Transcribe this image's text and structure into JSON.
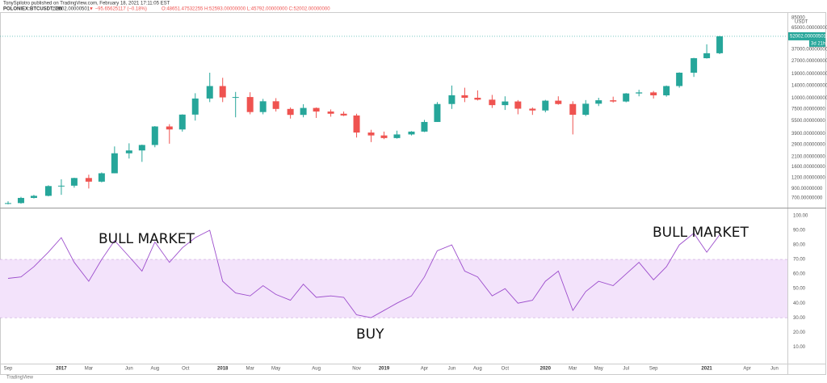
{
  "header": {
    "author_line": "TonySpilotro published on TradingView.com, February 18, 2021 17:11:05 EST",
    "symbol": "POLONIEX:BTCUSDT, 1W",
    "price": "52002.00000501",
    "change": "▼ −95.65625117 (−0.18%)",
    "ohlc": "O:48651.47532255 H:52593.00000000 L:45792.00000000 C:52002.00000000"
  },
  "footer": "TradingView",
  "chart_data": [
    {
      "type": "candlestick",
      "log_scale": true,
      "grid": false,
      "unit_label": "USDT",
      "up_color": "#26a69a",
      "down_color": "#ef5350",
      "last_price": {
        "value": 52002.00000501,
        "label": "52002.00000501"
      },
      "countdown": "3d 21h",
      "xlim": [
        2016.62,
        2021.5
      ],
      "x": [
        2016.67,
        2016.75,
        2016.83,
        2016.92,
        2017.0,
        2017.08,
        2017.17,
        2017.25,
        2017.33,
        2017.42,
        2017.5,
        2017.58,
        2017.67,
        2017.75,
        2017.83,
        2017.92,
        2018.0,
        2018.08,
        2018.17,
        2018.25,
        2018.33,
        2018.42,
        2018.5,
        2018.58,
        2018.67,
        2018.75,
        2018.83,
        2018.92,
        2019.0,
        2019.08,
        2019.17,
        2019.25,
        2019.33,
        2019.42,
        2019.5,
        2019.58,
        2019.67,
        2019.75,
        2019.83,
        2019.92,
        2020.0,
        2020.08,
        2020.17,
        2020.25,
        2020.33,
        2020.42,
        2020.5,
        2020.58,
        2020.67,
        2020.75,
        2020.83,
        2020.92,
        2021.0,
        2021.08
      ],
      "open": [
        600,
        610,
        700,
        740,
        960,
        970,
        1190,
        1080,
        1350,
        2300,
        2480,
        2870,
        4700,
        4340,
        6450,
        9900,
        13800,
        10200,
        10300,
        6900,
        9200,
        7500,
        6400,
        7700,
        7000,
        6600,
        6300,
        4000,
        3700,
        3450,
        3800,
        4100,
        5300,
        8550,
        10800,
        10100,
        9600,
        8300,
        9150,
        7550,
        7200,
        9350,
        8550,
        6420,
        8620,
        9450,
        9140,
        11330,
        11650,
        10780,
        13800,
        19700,
        28990,
        33100
      ],
      "high": [
        640,
        720,
        760,
        980,
        1150,
        1200,
        1300,
        1380,
        2760,
        3000,
        2900,
        4750,
        5000,
        6500,
        11400,
        19700,
        17200,
        11800,
        11700,
        9800,
        10000,
        7800,
        8500,
        7800,
        7400,
        7000,
        6600,
        4300,
        4100,
        4200,
        4150,
        5600,
        9000,
        14000,
        13200,
        12300,
        10900,
        10500,
        9500,
        7800,
        9550,
        10500,
        9200,
        9500,
        10100,
        10400,
        11450,
        12500,
        12100,
        14000,
        19900,
        29300,
        42000,
        52600
      ],
      "low": [
        590,
        600,
        690,
        730,
        760,
        920,
        900,
        1060,
        1350,
        2000,
        1830,
        2700,
        2970,
        4100,
        5500,
        9000,
        9000,
        6000,
        6500,
        6500,
        7000,
        5800,
        6000,
        5900,
        6100,
        6200,
        3500,
        3100,
        3350,
        3400,
        3700,
        4050,
        5300,
        7500,
        9000,
        9400,
        7700,
        7300,
        6500,
        6400,
        6850,
        8400,
        3800,
        6200,
        8100,
        8900,
        8950,
        10500,
        9900,
        10400,
        13200,
        17600,
        28700,
        32300
      ],
      "close": [
        610,
        700,
        740,
        960,
        970,
        1190,
        1080,
        1350,
        2300,
        2480,
        2870,
        4700,
        4340,
        6450,
        9900,
        13800,
        10200,
        10300,
        6900,
        9200,
        7500,
        6400,
        7700,
        7000,
        6600,
        6300,
        4000,
        3700,
        3450,
        3800,
        4100,
        5300,
        8550,
        10800,
        10100,
        9600,
        8300,
        9150,
        7550,
        7200,
        9350,
        8550,
        6420,
        8620,
        9450,
        9140,
        11330,
        11650,
        10780,
        13800,
        19700,
        28990,
        33100,
        52002
      ],
      "ylim": [
        540,
        99000
      ],
      "yticks": [
        {
          "value": 85000,
          "label": "85000"
        },
        {
          "value": 65000,
          "label": "65000.00000000"
        },
        {
          "value": 37000,
          "label": "37000.00000000"
        },
        {
          "value": 27000,
          "label": "27000.00000000"
        },
        {
          "value": 19000,
          "label": "19000.00000000"
        },
        {
          "value": 14000,
          "label": "14000.00000000"
        },
        {
          "value": 10000,
          "label": "10000.00000000"
        },
        {
          "value": 7500,
          "label": "7500.00000000"
        },
        {
          "value": 5500,
          "label": "5500.00000000"
        },
        {
          "value": 3900,
          "label": "3900.00000000"
        },
        {
          "value": 2900,
          "label": "2900.00000000"
        },
        {
          "value": 2100,
          "label": "2100.00000000"
        },
        {
          "value": 1600,
          "label": "1600.00000000"
        },
        {
          "value": 1200,
          "label": "1200.00000000"
        },
        {
          "value": 900,
          "label": "900.00000000"
        },
        {
          "value": 700,
          "label": "700.00000000"
        }
      ]
    },
    {
      "type": "line",
      "color": "#9c4dcc",
      "band": [
        30,
        70
      ],
      "band_color": "#f3e3fb",
      "annotations": [
        "BULL MARKET",
        "BUY",
        "BULL MARKET"
      ],
      "xlim": [
        2016.62,
        2021.5
      ],
      "x": [
        2016.67,
        2016.75,
        2016.83,
        2016.92,
        2017.0,
        2017.08,
        2017.17,
        2017.25,
        2017.33,
        2017.42,
        2017.5,
        2017.58,
        2017.67,
        2017.75,
        2017.83,
        2017.92,
        2018.0,
        2018.08,
        2018.17,
        2018.25,
        2018.33,
        2018.42,
        2018.5,
        2018.58,
        2018.67,
        2018.75,
        2018.83,
        2018.92,
        2019.0,
        2019.08,
        2019.17,
        2019.25,
        2019.33,
        2019.42,
        2019.5,
        2019.58,
        2019.67,
        2019.75,
        2019.83,
        2019.92,
        2020.0,
        2020.08,
        2020.17,
        2020.25,
        2020.33,
        2020.42,
        2020.5,
        2020.58,
        2020.67,
        2020.75,
        2020.83,
        2020.92,
        2021.0,
        2021.08
      ],
      "values": [
        57,
        58,
        65,
        75,
        85,
        68,
        55,
        70,
        83,
        72,
        62,
        82,
        68,
        78,
        85,
        90,
        55,
        47,
        45,
        52,
        46,
        42,
        53,
        44,
        45,
        44,
        32,
        30,
        35,
        40,
        45,
        58,
        76,
        80,
        62,
        58,
        45,
        50,
        40,
        42,
        55,
        62,
        35,
        48,
        55,
        52,
        60,
        68,
        56,
        65,
        80,
        88,
        75,
        87
      ],
      "ylim": [
        -1.5,
        105
      ],
      "yticks": [
        {
          "value": 10,
          "label": "10.00"
        },
        {
          "value": 20,
          "label": "20.00"
        },
        {
          "value": 30,
          "label": "30.00"
        },
        {
          "value": 40,
          "label": "40.00"
        },
        {
          "value": 50,
          "label": "50.00"
        },
        {
          "value": 60,
          "label": "60.00"
        },
        {
          "value": 70,
          "label": "70.00"
        },
        {
          "value": 80,
          "label": "80.00"
        },
        {
          "value": 90,
          "label": "90.00"
        },
        {
          "value": 100,
          "label": "100.00"
        }
      ],
      "xticks": [
        {
          "value": 2016.67,
          "label": "Sep"
        },
        2017,
        {
          "value": 2017.17,
          "label": "Mar"
        },
        {
          "value": 2017.42,
          "label": "Jun"
        },
        {
          "value": 2017.58,
          "label": "Aug"
        },
        {
          "value": 2017.77,
          "label": "Oct"
        },
        2018,
        {
          "value": 2018.17,
          "label": "Mar"
        },
        {
          "value": 2018.33,
          "label": "May"
        },
        {
          "value": 2018.58,
          "label": "Aug"
        },
        {
          "value": 2018.83,
          "label": "Nov"
        },
        2019,
        {
          "value": 2019.25,
          "label": "Apr"
        },
        {
          "value": 2019.42,
          "label": "Jun"
        },
        {
          "value": 2019.58,
          "label": "Aug"
        },
        {
          "value": 2019.75,
          "label": "Oct"
        },
        2020,
        {
          "value": 2020.17,
          "label": "Mar"
        },
        {
          "value": 2020.33,
          "label": "May"
        },
        {
          "value": 2020.5,
          "label": "Jul"
        },
        {
          "value": 2020.67,
          "label": "Sep"
        },
        2021,
        {
          "value": 2021.25,
          "label": "Apr"
        },
        {
          "value": 2021.42,
          "label": "Jun"
        }
      ]
    }
  ]
}
